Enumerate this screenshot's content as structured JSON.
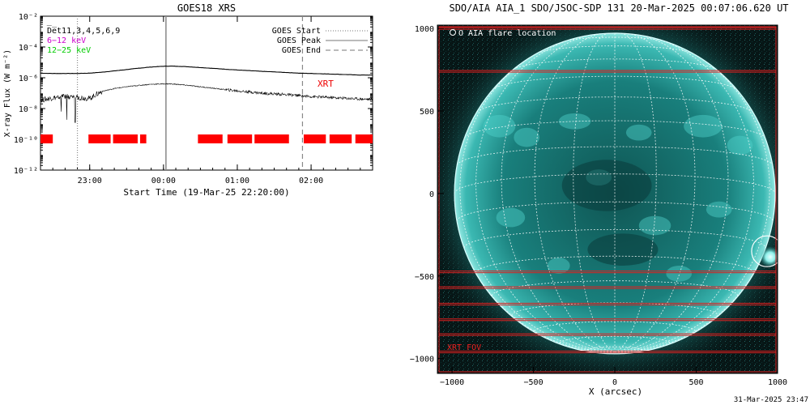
{
  "footer_timestamp": "31-Mar-2025 23:47",
  "chart_data": [
    {
      "type": "line",
      "title": "GOES18 XRS",
      "xlabel": "Start Time (19-Mar-25 22:20:00)",
      "ylabel": "X-ray Flux (W m⁻²)",
      "y_scale": "log",
      "ylim": [
        1e-12,
        0.01
      ],
      "y_ticks": [
        {
          "value": 0.01,
          "label": "10⁻²"
        },
        {
          "value": 0.0001,
          "label": "10⁻⁴"
        },
        {
          "value": 1e-06,
          "label": "10⁻⁶"
        },
        {
          "value": 1e-08,
          "label": "10⁻⁸"
        },
        {
          "value": 1e-10,
          "label": "10⁻¹⁰"
        },
        {
          "value": 1e-12,
          "label": "10⁻¹²"
        }
      ],
      "x_range_minutes": [
        0,
        270
      ],
      "x_ticks": [
        {
          "minutes": 40,
          "label": "23:00"
        },
        {
          "minutes": 100,
          "label": "00:00"
        },
        {
          "minutes": 160,
          "label": "01:00"
        },
        {
          "minutes": 220,
          "label": "02:00"
        }
      ],
      "legend_left": [
        {
          "label": "D̅e̅t11,3,4,5,6,9",
          "color": "#000000"
        },
        {
          "label": "6−12 keV",
          "color": "#cc00cc"
        },
        {
          "label": "12−25 keV",
          "color": "#00cc00"
        }
      ],
      "legend_right": [
        {
          "label": "GOES Start",
          "style": "dotted"
        },
        {
          "label": "GOES Peak",
          "style": "solid"
        },
        {
          "label": "GOES End",
          "style": "dashed"
        }
      ],
      "event_markers": [
        {
          "name": "GOES Start",
          "minutes": 30,
          "style": "dotted"
        },
        {
          "name": "GOES Peak",
          "minutes": 102,
          "style": "solid"
        },
        {
          "name": "GOES End",
          "minutes": 213,
          "style": "dashed"
        }
      ],
      "series": [
        {
          "name": "long",
          "color": "#000000",
          "x": [
            0,
            10,
            20,
            30,
            40,
            50,
            60,
            70,
            80,
            90,
            100,
            105,
            110,
            120,
            130,
            140,
            150,
            160,
            170,
            180,
            190,
            200,
            210,
            220,
            230,
            240,
            250,
            260,
            270
          ],
          "y": [
            2e-06,
            1.9e-06,
            1.9e-06,
            1.9e-06,
            2e-06,
            2.3e-06,
            2.8e-06,
            3.4e-06,
            4.2e-06,
            5e-06,
            5.6e-06,
            5.7e-06,
            5.6e-06,
            5.2e-06,
            4.6e-06,
            4.1e-06,
            3.6e-06,
            3.2e-06,
            2.9e-06,
            2.6e-06,
            2.4e-06,
            2.2e-06,
            2e-06,
            1.9e-06,
            1.8e-06,
            1.7e-06,
            1.6e-06,
            1.5e-06,
            1.5e-06
          ]
        },
        {
          "name": "short",
          "color": "#000000",
          "x": [
            0,
            10,
            20,
            30,
            40,
            45,
            50,
            60,
            70,
            80,
            90,
            100,
            105,
            110,
            120,
            130,
            140,
            150,
            160,
            170,
            180,
            190,
            200,
            210,
            220,
            230,
            240,
            250,
            260,
            270
          ],
          "y": [
            3.5e-08,
            5e-08,
            6e-08,
            5.5e-08,
            4.5e-08,
            8e-08,
            1.3e-07,
            2e-07,
            2.6e-07,
            3.2e-07,
            3.8e-07,
            4e-07,
            4e-07,
            3.8e-07,
            3.2e-07,
            2.6e-07,
            2.1e-07,
            1.7e-07,
            1.4e-07,
            1.2e-07,
            1e-07,
            9e-08,
            8e-08,
            7e-08,
            6e-08,
            5.5e-08,
            5e-08,
            4.6e-08,
            4.2e-08,
            4e-08
          ]
        }
      ],
      "xrt_label": "XRT",
      "xrt_level": 1e-10,
      "xrt_intervals_minutes": [
        [
          0,
          10
        ],
        [
          39,
          57
        ],
        [
          59,
          79
        ],
        [
          81,
          86
        ],
        [
          128,
          148
        ],
        [
          152,
          172
        ],
        [
          174,
          202
        ],
        [
          214,
          232
        ],
        [
          235,
          253
        ],
        [
          256,
          270
        ]
      ]
    },
    {
      "type": "image",
      "title": "SDO/AIA AIA_1 SDO/JSOC-SDP 131 20-Mar-2025 00:07:06.620 UT",
      "xlabel": "X (arcsec)",
      "ylabel": "",
      "xlim": [
        -1090,
        1000
      ],
      "ylim": [
        -1090,
        1020
      ],
      "x_ticks": [
        -1000,
        -500,
        0,
        500,
        1000
      ],
      "x_tick_labels": [
        "−1000",
        "−500",
        "0",
        "500",
        "1000"
      ],
      "y_ticks": [
        1000,
        500,
        0,
        -500,
        -1000
      ],
      "y_tick_labels": [
        "1000",
        "500",
        "0",
        "−500",
        "−1000"
      ],
      "legend": "O AIA flare location",
      "flare_location_arcsec": [
        935,
        -350
      ],
      "solar_radius_arcsec": 985,
      "fov_label": "XRT FOV",
      "colors": {
        "disk": "#1c9c98",
        "corona": "#0f4d4d",
        "background": "#071616",
        "fov": "#dd2020"
      }
    }
  ]
}
